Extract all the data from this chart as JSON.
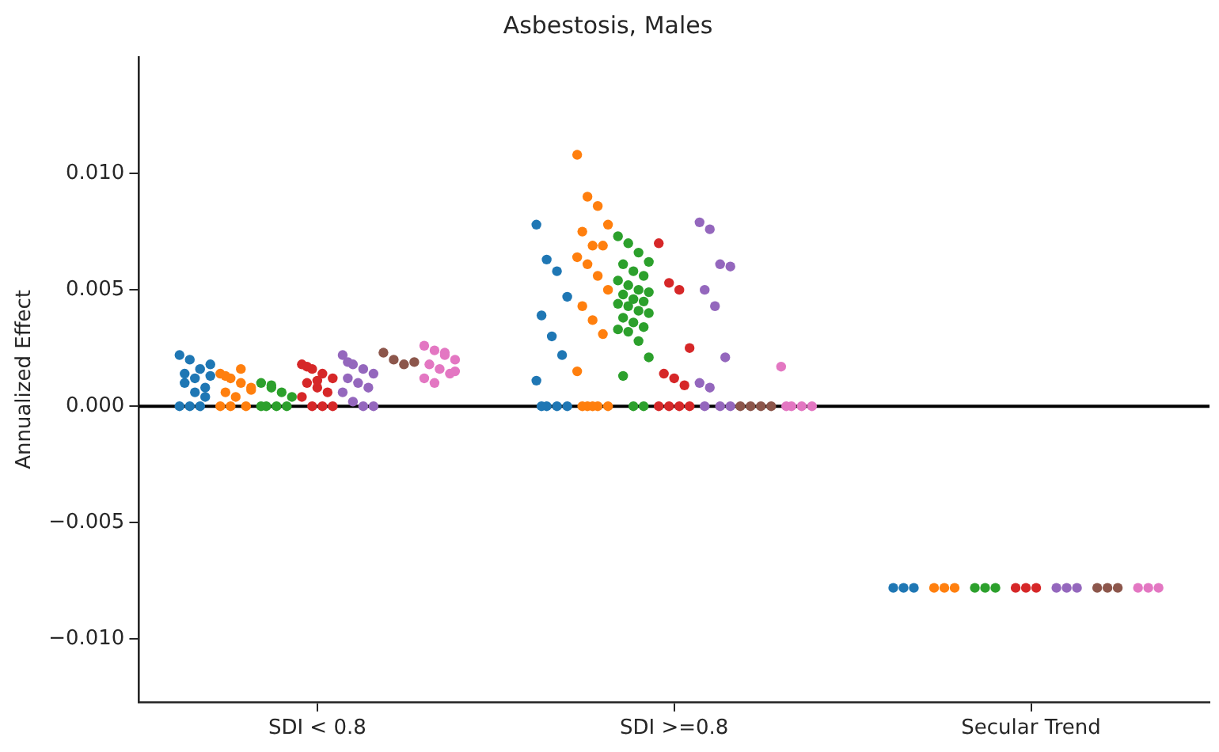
{
  "chart_data": {
    "type": "scatter",
    "title": "Asbestosis, Males",
    "ylabel": "Annualized Effect",
    "categories": [
      "SDI < 0.8",
      "SDI >=0.8",
      "Secular Trend"
    ],
    "ylim": [
      -0.0127,
      0.015
    ],
    "yticks": [
      {
        "value": -0.01,
        "label": "−0.010"
      },
      {
        "value": -0.005,
        "label": "−0.005"
      },
      {
        "value": 0,
        "label": "0.000"
      },
      {
        "value": 0.005,
        "label": "0.005"
      },
      {
        "value": 0.01,
        "label": "0.010"
      }
    ],
    "grid": false,
    "legend": false,
    "marker": "circle",
    "ref_lines": [
      {
        "axis": "y",
        "value": 0,
        "color": "#000000"
      }
    ],
    "series": [
      {
        "color": "#1f77b4",
        "x": [
          "SDI < 0.8",
          "SDI < 0.8",
          "SDI < 0.8",
          "SDI < 0.8",
          "SDI < 0.8",
          "SDI < 0.8",
          "SDI < 0.8",
          "SDI < 0.8",
          "SDI < 0.8",
          "SDI < 0.8",
          "SDI < 0.8",
          "SDI < 0.8",
          "SDI < 0.8",
          "SDI < 0.8",
          "SDI >=0.8",
          "SDI >=0.8",
          "SDI >=0.8",
          "SDI >=0.8",
          "SDI >=0.8",
          "SDI >=0.8",
          "SDI >=0.8",
          "SDI >=0.8",
          "SDI >=0.8",
          "SDI >=0.8",
          "SDI >=0.8",
          "SDI >=0.8",
          "Secular Trend",
          "Secular Trend",
          "Secular Trend"
        ],
        "values": [
          0.0022,
          0.002,
          0.0016,
          0.0013,
          0.001,
          0.0006,
          0.0004,
          0,
          0,
          0,
          0.0018,
          0.0014,
          0.0012,
          0.0008,
          0.0078,
          0.0063,
          0.0058,
          0.0047,
          0.0039,
          0.003,
          0.0022,
          0.0011,
          0,
          0,
          0,
          0,
          -0.0078,
          -0.0078,
          -0.0078
        ]
      },
      {
        "color": "#ff7f0e",
        "x": [
          "SDI < 0.8",
          "SDI < 0.8",
          "SDI < 0.8",
          "SDI < 0.8",
          "SDI < 0.8",
          "SDI < 0.8",
          "SDI < 0.8",
          "SDI < 0.8",
          "SDI < 0.8",
          "SDI < 0.8",
          "SDI < 0.8",
          "SDI < 0.8",
          "SDI >=0.8",
          "SDI >=0.8",
          "SDI >=0.8",
          "SDI >=0.8",
          "SDI >=0.8",
          "SDI >=0.8",
          "SDI >=0.8",
          "SDI >=0.8",
          "SDI >=0.8",
          "SDI >=0.8",
          "SDI >=0.8",
          "SDI >=0.8",
          "SDI >=0.8",
          "SDI >=0.8",
          "SDI >=0.8",
          "SDI >=0.8",
          "SDI >=0.8",
          "SDI >=0.8",
          "SDI >=0.8",
          "SDI >=0.8",
          "Secular Trend",
          "Secular Trend",
          "Secular Trend"
        ],
        "values": [
          0.0014,
          0.0012,
          0.001,
          0.0008,
          0.0006,
          0.0004,
          0,
          0,
          0,
          0.0016,
          0.0007,
          0.0013,
          0.0108,
          0.009,
          0.0086,
          0.0078,
          0.0075,
          0.0069,
          0.0069,
          0.0064,
          0.0061,
          0.0056,
          0.005,
          0.0043,
          0.0037,
          0.0031,
          0.0015,
          0,
          0,
          0,
          0,
          0,
          -0.0078,
          -0.0078,
          -0.0078
        ]
      },
      {
        "color": "#2ca02c",
        "x": [
          "SDI < 0.8",
          "SDI < 0.8",
          "SDI < 0.8",
          "SDI < 0.8",
          "SDI < 0.8",
          "SDI < 0.8",
          "SDI < 0.8",
          "SDI < 0.8",
          "SDI < 0.8",
          "SDI >=0.8",
          "SDI >=0.8",
          "SDI >=0.8",
          "SDI >=0.8",
          "SDI >=0.8",
          "SDI >=0.8",
          "SDI >=0.8",
          "SDI >=0.8",
          "SDI >=0.8",
          "SDI >=0.8",
          "SDI >=0.8",
          "SDI >=0.8",
          "SDI >=0.8",
          "SDI >=0.8",
          "SDI >=0.8",
          "SDI >=0.8",
          "SDI >=0.8",
          "SDI >=0.8",
          "SDI >=0.8",
          "SDI >=0.8",
          "SDI >=0.8",
          "SDI >=0.8",
          "SDI >=0.8",
          "SDI >=0.8",
          "SDI >=0.8",
          "SDI >=0.8",
          "SDI >=0.8",
          "SDI >=0.8",
          "Secular Trend",
          "Secular Trend",
          "Secular Trend"
        ],
        "values": [
          0.001,
          0.0008,
          0.0006,
          0.0004,
          0,
          0,
          0,
          0,
          0.0009,
          0.0073,
          0.007,
          0.0066,
          0.0062,
          0.0061,
          0.0058,
          0.0056,
          0.0054,
          0.0052,
          0.005,
          0.0049,
          0.0048,
          0.0046,
          0.0045,
          0.0044,
          0.0043,
          0.0041,
          0.004,
          0.0038,
          0.0036,
          0.0034,
          0.0033,
          0.0032,
          0.0028,
          0.0021,
          0.0013,
          0,
          0,
          -0.0078,
          -0.0078,
          -0.0078
        ]
      },
      {
        "color": "#d62728",
        "x": [
          "SDI < 0.8",
          "SDI < 0.8",
          "SDI < 0.8",
          "SDI < 0.8",
          "SDI < 0.8",
          "SDI < 0.8",
          "SDI < 0.8",
          "SDI < 0.8",
          "SDI < 0.8",
          "SDI < 0.8",
          "SDI < 0.8",
          "SDI < 0.8",
          "SDI < 0.8",
          "SDI >=0.8",
          "SDI >=0.8",
          "SDI >=0.8",
          "SDI >=0.8",
          "SDI >=0.8",
          "SDI >=0.8",
          "SDI >=0.8",
          "SDI >=0.8",
          "SDI >=0.8",
          "SDI >=0.8",
          "SDI >=0.8",
          "Secular Trend",
          "Secular Trend",
          "Secular Trend"
        ],
        "values": [
          0.0018,
          0.0016,
          0.0014,
          0.0012,
          0.001,
          0.0008,
          0.0006,
          0.0004,
          0,
          0,
          0,
          0.0017,
          0.0011,
          0.007,
          0.0053,
          0.005,
          0.0025,
          0.0014,
          0.0012,
          0.0009,
          0,
          0,
          0,
          0,
          -0.0078,
          -0.0078,
          -0.0078
        ]
      },
      {
        "color": "#9467bd",
        "x": [
          "SDI < 0.8",
          "SDI < 0.8",
          "SDI < 0.8",
          "SDI < 0.8",
          "SDI < 0.8",
          "SDI < 0.8",
          "SDI < 0.8",
          "SDI < 0.8",
          "SDI < 0.8",
          "SDI < 0.8",
          "SDI < 0.8",
          "SDI < 0.8",
          "SDI >=0.8",
          "SDI >=0.8",
          "SDI >=0.8",
          "SDI >=0.8",
          "SDI >=0.8",
          "SDI >=0.8",
          "SDI >=0.8",
          "SDI >=0.8",
          "SDI >=0.8",
          "SDI >=0.8",
          "SDI >=0.8",
          "SDI >=0.8",
          "Secular Trend",
          "Secular Trend",
          "Secular Trend"
        ],
        "values": [
          0.0022,
          0.0018,
          0.0016,
          0.0014,
          0.0012,
          0.001,
          0.0008,
          0.0006,
          0.0002,
          0,
          0,
          0.0019,
          0.0079,
          0.0076,
          0.0061,
          0.006,
          0.005,
          0.0043,
          0.0021,
          0.001,
          0.0008,
          0,
          0,
          0,
          -0.0078,
          -0.0078,
          -0.0078
        ]
      },
      {
        "color": "#8c564b",
        "x": [
          "SDI < 0.8",
          "SDI < 0.8",
          "SDI < 0.8",
          "SDI < 0.8",
          "SDI >=0.8",
          "SDI >=0.8",
          "SDI >=0.8",
          "SDI >=0.8",
          "Secular Trend",
          "Secular Trend",
          "Secular Trend"
        ],
        "values": [
          0.0023,
          0.002,
          0.0018,
          0.0019,
          0,
          0,
          0,
          0,
          -0.0078,
          -0.0078,
          -0.0078
        ]
      },
      {
        "color": "#e377c2",
        "x": [
          "SDI < 0.8",
          "SDI < 0.8",
          "SDI < 0.8",
          "SDI < 0.8",
          "SDI < 0.8",
          "SDI < 0.8",
          "SDI < 0.8",
          "SDI < 0.8",
          "SDI < 0.8",
          "SDI < 0.8",
          "SDI < 0.8",
          "SDI >=0.8",
          "SDI >=0.8",
          "SDI >=0.8",
          "SDI >=0.8",
          "SDI >=0.8",
          "Secular Trend",
          "Secular Trend",
          "Secular Trend"
        ],
        "values": [
          0.0026,
          0.0024,
          0.0022,
          0.002,
          0.0018,
          0.0016,
          0.0014,
          0.0012,
          0.001,
          0.0023,
          0.0015,
          0.0017,
          0,
          0,
          0,
          0,
          -0.0078,
          -0.0078,
          -0.0078
        ]
      }
    ]
  }
}
